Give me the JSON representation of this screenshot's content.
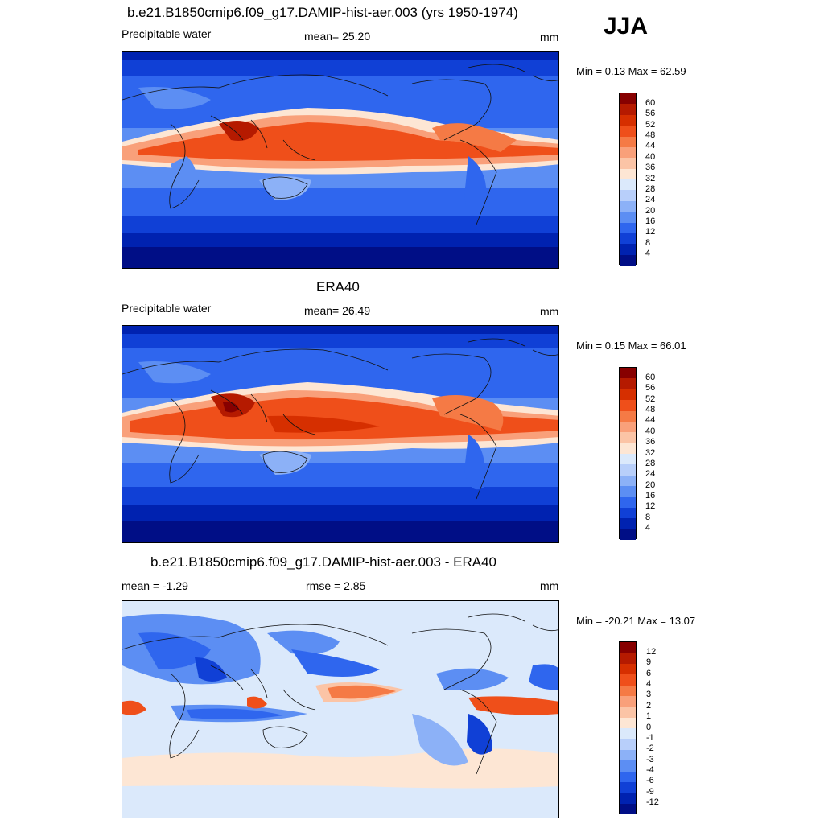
{
  "season": "JJA",
  "panels": [
    {
      "title": "b.e21.B1850cmip6.f09_g17.DAMIP-hist-aer.003 (yrs 1950-1974)",
      "left_label": "Precipitable water",
      "center_label": "mean=  25.20",
      "units": "mm",
      "minmax": "Min =   0.13 Max =  62.59",
      "colorbar": {
        "labels": [
          "60",
          "56",
          "52",
          "48",
          "44",
          "40",
          "36",
          "32",
          "28",
          "24",
          "20",
          "16",
          "12",
          "8",
          "4"
        ],
        "colors": [
          "#870000",
          "#b51a00",
          "#d62f00",
          "#ef4f1a",
          "#f57a45",
          "#f9a07a",
          "#fbc4a6",
          "#fde6d4",
          "#dbe9fb",
          "#b8cffa",
          "#8cb1f7",
          "#5c8ef3",
          "#2f66ee",
          "#1040d6",
          "#0022b0",
          "#000e86"
        ]
      }
    },
    {
      "title": "ERA40",
      "left_label": "Precipitable water",
      "center_label": "mean=  26.49",
      "units": "mm",
      "minmax": "Min =   0.15 Max =  66.01",
      "colorbar": {
        "labels": [
          "60",
          "56",
          "52",
          "48",
          "44",
          "40",
          "36",
          "32",
          "28",
          "24",
          "20",
          "16",
          "12",
          "8",
          "4"
        ],
        "colors": [
          "#870000",
          "#b51a00",
          "#d62f00",
          "#ef4f1a",
          "#f57a45",
          "#f9a07a",
          "#fbc4a6",
          "#fde6d4",
          "#dbe9fb",
          "#b8cffa",
          "#8cb1f7",
          "#5c8ef3",
          "#2f66ee",
          "#1040d6",
          "#0022b0",
          "#000e86"
        ]
      }
    },
    {
      "title": "b.e21.B1850cmip6.f09_g17.DAMIP-hist-aer.003 - ERA40",
      "left_label": "mean =  -1.29",
      "center_label": "rmse =   2.85",
      "units": "mm",
      "minmax": "Min = -20.21 Max =  13.07",
      "colorbar": {
        "labels": [
          "12",
          "9",
          "6",
          "4",
          "3",
          "2",
          "1",
          "0",
          "-1",
          "-2",
          "-3",
          "-4",
          "-6",
          "-9",
          "-12"
        ],
        "colors": [
          "#870000",
          "#b51a00",
          "#d62f00",
          "#ef4f1a",
          "#f57a45",
          "#f9a07a",
          "#fbc4a6",
          "#fde6d4",
          "#dbe9fb",
          "#b8cffa",
          "#8cb1f7",
          "#5c8ef3",
          "#2f66ee",
          "#1040d6",
          "#0022b0",
          "#000e86"
        ]
      }
    }
  ]
}
